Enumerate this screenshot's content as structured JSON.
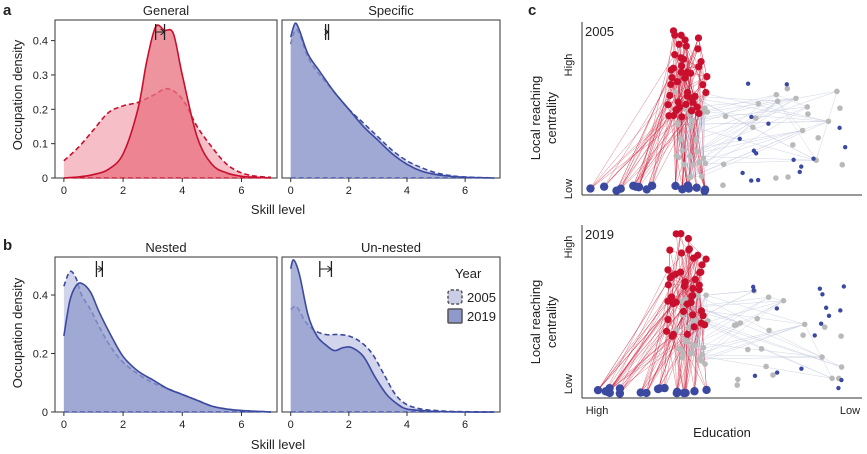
{
  "colors": {
    "red": "#c8102e",
    "red_fill_2005": "#f4b3bc",
    "red_fill_2019": "#e8707f",
    "blue": "#3b4aa0",
    "blue_fill_2005": "#c9cde6",
    "blue_fill_2019": "#8f99cc",
    "grey": "#b9b9b9",
    "edge_grey": "#c5cbe0"
  },
  "panel_labels": {
    "a": "a",
    "b": "b",
    "c": "c"
  },
  "legend": {
    "title": "Year",
    "y2005": "2005",
    "y2019": "2019"
  },
  "chart_data": [
    {
      "type": "area",
      "panel": "a",
      "title": "General",
      "xlabel": "",
      "ylabel": "Occupation density",
      "xlim": [
        -0.3,
        7.2
      ],
      "ylim": [
        0,
        0.46
      ],
      "xticks": [
        "0",
        "2",
        "4",
        "6"
      ],
      "yticks": [
        "0",
        "0.1",
        "0.2",
        "0.3",
        "0.4"
      ],
      "series": [
        {
          "name": "2005",
          "x": [
            0,
            0.5,
            1,
            1.5,
            2,
            2.5,
            3,
            3.5,
            4,
            4.5,
            5,
            5.5,
            6,
            6.5,
            7
          ],
          "values": [
            0.05,
            0.09,
            0.14,
            0.19,
            0.21,
            0.22,
            0.24,
            0.26,
            0.23,
            0.15,
            0.09,
            0.04,
            0.015,
            0.005,
            0.002
          ]
        },
        {
          "name": "2019",
          "x": [
            0,
            0.5,
            1,
            1.5,
            2,
            2.5,
            2.8,
            3.1,
            3.4,
            3.7,
            4,
            4.5,
            5,
            5.5,
            6,
            6.5,
            7
          ],
          "values": [
            0.0,
            0.003,
            0.01,
            0.025,
            0.07,
            0.2,
            0.34,
            0.44,
            0.43,
            0.42,
            0.3,
            0.12,
            0.04,
            0.015,
            0.005,
            0.002,
            0.0
          ]
        }
      ],
      "mean_marker": {
        "x1": 3.1,
        "x2": 3.4
      }
    },
    {
      "type": "area",
      "panel": "a",
      "title": "Specific",
      "xlabel": "",
      "ylabel": "",
      "xlim": [
        -0.3,
        7.2
      ],
      "ylim": [
        0,
        0.46
      ],
      "xticks": [
        "0",
        "2",
        "4",
        "6"
      ],
      "yticks": [],
      "series": [
        {
          "name": "2005",
          "x": [
            0,
            0.15,
            0.3,
            0.6,
            1,
            1.5,
            2,
            2.5,
            3,
            3.5,
            4,
            4.5,
            5,
            5.5,
            6,
            7
          ],
          "values": [
            0.39,
            0.43,
            0.42,
            0.35,
            0.3,
            0.25,
            0.2,
            0.16,
            0.12,
            0.08,
            0.05,
            0.03,
            0.015,
            0.007,
            0.003,
            0.0
          ]
        },
        {
          "name": "2019",
          "x": [
            0,
            0.15,
            0.3,
            0.6,
            1,
            1.5,
            2,
            2.5,
            3,
            3.5,
            4,
            4.5,
            5,
            5.5,
            6,
            7
          ],
          "values": [
            0.41,
            0.45,
            0.43,
            0.36,
            0.31,
            0.25,
            0.2,
            0.15,
            0.11,
            0.07,
            0.04,
            0.02,
            0.01,
            0.005,
            0.002,
            0.0
          ]
        }
      ],
      "mean_marker": {
        "x1": 1.2,
        "x2": 1.3
      }
    },
    {
      "type": "area",
      "panel": "b",
      "title": "Nested",
      "xlabel": "Skill level",
      "ylabel": "Occupation density",
      "xlim": [
        -0.3,
        7.2
      ],
      "ylim": [
        0,
        0.53
      ],
      "xticks": [
        "0",
        "2",
        "4",
        "6"
      ],
      "yticks": [
        "0",
        "0.2",
        "0.4"
      ],
      "series": [
        {
          "name": "2005",
          "x": [
            0,
            0.2,
            0.4,
            0.6,
            0.9,
            1.2,
            1.6,
            2,
            2.5,
            3,
            3.5,
            4,
            4.5,
            5,
            5.5,
            6,
            7
          ],
          "values": [
            0.43,
            0.48,
            0.46,
            0.4,
            0.35,
            0.29,
            0.22,
            0.17,
            0.13,
            0.1,
            0.08,
            0.06,
            0.04,
            0.02,
            0.01,
            0.005,
            0.0
          ]
        },
        {
          "name": "2019",
          "x": [
            0,
            0.2,
            0.4,
            0.6,
            0.9,
            1.2,
            1.6,
            2,
            2.5,
            3,
            3.5,
            4,
            4.5,
            5,
            5.5,
            6,
            7
          ],
          "values": [
            0.26,
            0.38,
            0.43,
            0.44,
            0.41,
            0.34,
            0.26,
            0.19,
            0.14,
            0.11,
            0.08,
            0.06,
            0.04,
            0.02,
            0.01,
            0.005,
            0.0
          ]
        }
      ],
      "mean_marker": {
        "x1": 1.1,
        "x2": 1.3
      }
    },
    {
      "type": "area",
      "panel": "b",
      "title": "Un-nested",
      "xlabel": "Skill level",
      "ylabel": "",
      "xlim": [
        -0.3,
        7.2
      ],
      "ylim": [
        0,
        0.53
      ],
      "xticks": [
        "0",
        "2",
        "4",
        "6"
      ],
      "yticks": [],
      "series": [
        {
          "name": "2005",
          "x": [
            0,
            0.2,
            0.5,
            0.8,
            1.2,
            1.6,
            2,
            2.4,
            2.8,
            3.2,
            3.6,
            4,
            4.5,
            5,
            5.5,
            6,
            7
          ],
          "values": [
            0.35,
            0.36,
            0.31,
            0.28,
            0.265,
            0.265,
            0.26,
            0.24,
            0.2,
            0.13,
            0.06,
            0.025,
            0.01,
            0.005,
            0.002,
            0.001,
            0.0
          ]
        },
        {
          "name": "2019",
          "x": [
            0,
            0.1,
            0.3,
            0.6,
            0.9,
            1.2,
            1.5,
            1.8,
            2.1,
            2.5,
            2.9,
            3.3,
            3.7,
            4,
            4.5,
            5,
            6,
            7
          ],
          "values": [
            0.49,
            0.52,
            0.47,
            0.33,
            0.26,
            0.23,
            0.21,
            0.22,
            0.22,
            0.19,
            0.12,
            0.06,
            0.025,
            0.01,
            0.005,
            0.002,
            0.0,
            0.0
          ]
        }
      ],
      "mean_marker": {
        "x1": 1.0,
        "x2": 1.4
      }
    },
    {
      "type": "scatter",
      "panel": "c",
      "title": "2005",
      "xlabel": "",
      "ylabel": "Local reaching centrality",
      "ytick_high": "High",
      "ytick_low": "Low"
    },
    {
      "type": "scatter",
      "panel": "c",
      "title": "2019",
      "xlabel": "Education",
      "ylabel": "Local reaching centrality",
      "ytick_high": "High",
      "ytick_low": "Low",
      "xtick_left": "High",
      "xtick_right": "Low"
    }
  ]
}
